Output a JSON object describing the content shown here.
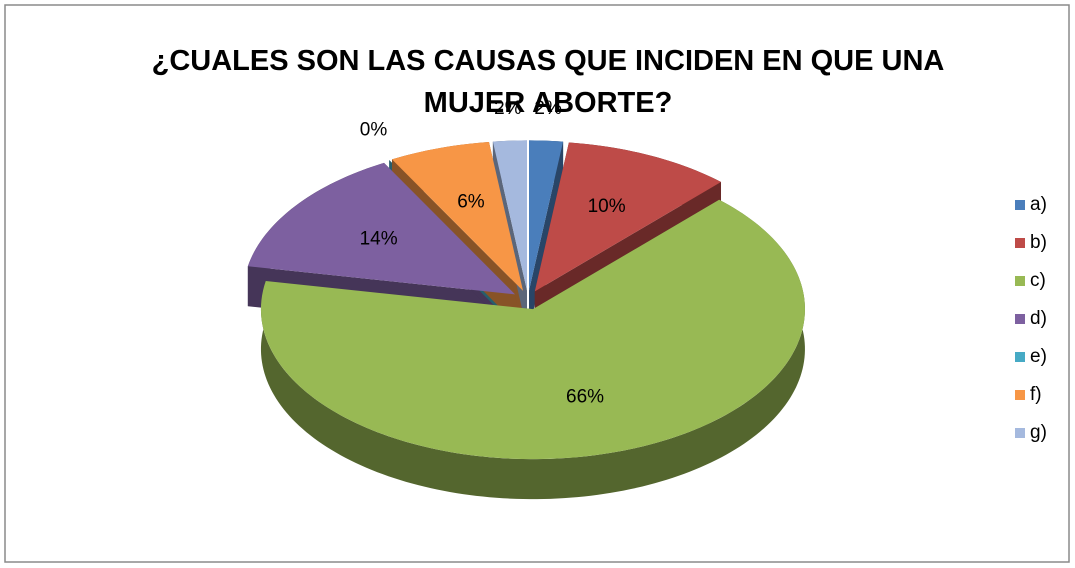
{
  "chart_data": {
    "type": "pie",
    "title": "¿CUALES SON LAS CAUSAS QUE INCIDEN EN QUE UNA MUJER ABORTE?",
    "categories": [
      "a)",
      "b)",
      "c)",
      "d)",
      "e)",
      "f)",
      "g)"
    ],
    "values": [
      2,
      10,
      66,
      14,
      0,
      6,
      2
    ],
    "value_labels": [
      "2%",
      "10%",
      "66%",
      "14%",
      "0%",
      "6%",
      "2%"
    ],
    "colors": [
      "#4a7ebb",
      "#be4b48",
      "#98b954",
      "#7d60a0",
      "#46aac5",
      "#f79646",
      "#a5b9de"
    ],
    "legend": "right"
  }
}
